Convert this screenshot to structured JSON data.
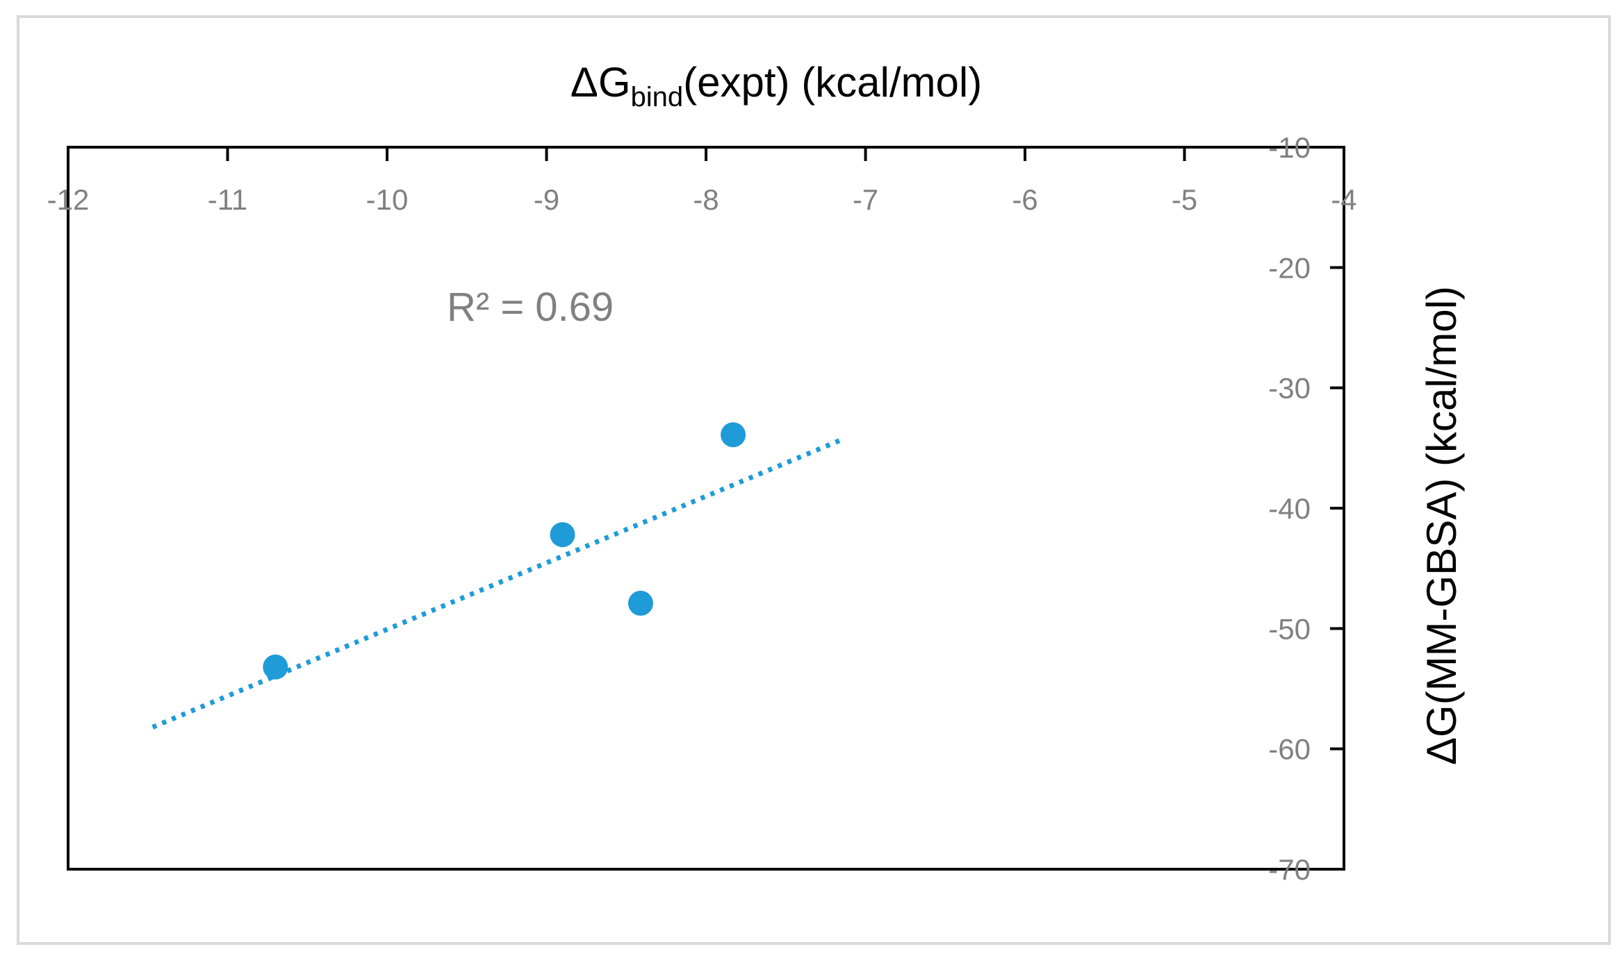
{
  "chart_data": {
    "type": "scatter",
    "title": "ΔGbind(expt) (kcal/mol)",
    "title_main": "ΔG",
    "title_sub": "bind",
    "title_rest": "(expt) (kcal/mol)",
    "xlabel": "ΔGbind(expt) (kcal/mol)",
    "ylabel": "ΔG(MM-GBSA) (kcal/mol)",
    "xlim": [
      -12,
      -4
    ],
    "ylim": [
      -70,
      -10
    ],
    "x_axis_position": "top",
    "y_axis_position": "right",
    "x_ticks": [
      -12,
      -11,
      -10,
      -9,
      -8,
      -7,
      -6,
      -5,
      -4
    ],
    "y_ticks": [
      -10,
      -20,
      -30,
      -40,
      -50,
      -60,
      -70
    ],
    "x_tick_labels": [
      "-12",
      "-11",
      "-10",
      "-9",
      "-8",
      "-7",
      "-6",
      "-5",
      "-4"
    ],
    "y_tick_labels": [
      "-10",
      "-20",
      "-30",
      "-40",
      "-50",
      "-60",
      "-70"
    ],
    "grid": false,
    "legend": "none",
    "series": [
      {
        "points": [
          {
            "x": -10.7,
            "y": -53.2
          },
          {
            "x": -8.9,
            "y": -42.2
          },
          {
            "x": -8.41,
            "y": -47.9
          },
          {
            "x": -7.83,
            "y": -33.9
          }
        ]
      }
    ],
    "trendline": {
      "type": "linear",
      "style": "dotted",
      "x_start": -11.47,
      "y_start": -58.2,
      "x_end": -7.13,
      "y_end": -34.2
    },
    "annotation": "R² = 0.69",
    "colors": {
      "marker": "#1f9bd7",
      "trendline": "#1f9bd7",
      "tick_label": "#808080",
      "axis": "#000000",
      "frame": "#d9d9d9"
    }
  }
}
